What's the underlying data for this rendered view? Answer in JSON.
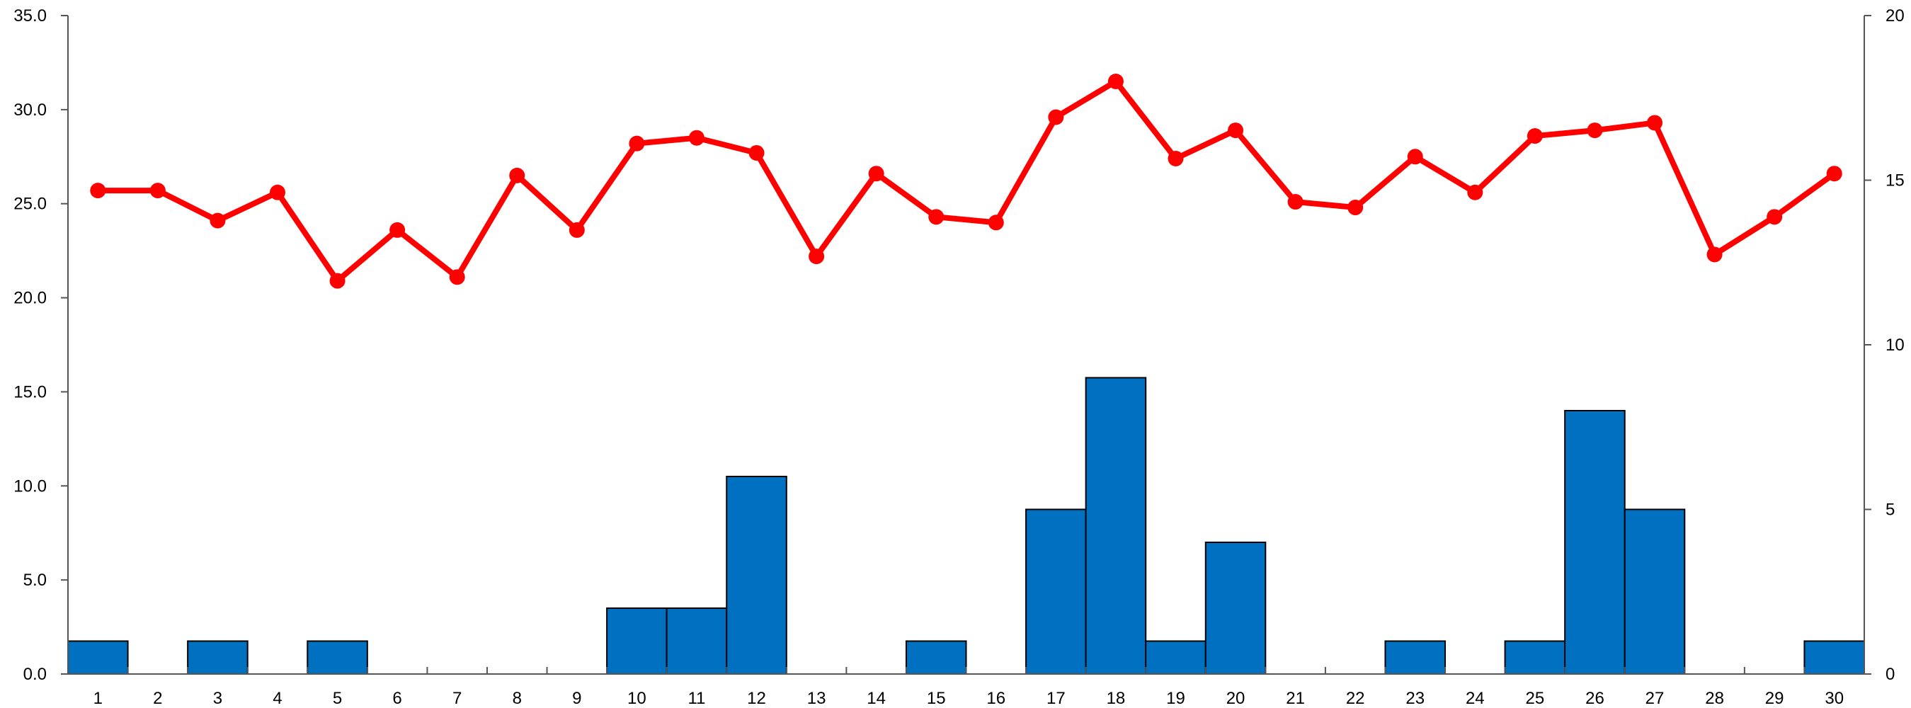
{
  "chart_data": {
    "type": "bar+line",
    "categories": [
      "1",
      "2",
      "3",
      "4",
      "5",
      "6",
      "7",
      "8",
      "9",
      "10",
      "11",
      "12",
      "13",
      "14",
      "15",
      "16",
      "17",
      "18",
      "19",
      "20",
      "21",
      "22",
      "23",
      "24",
      "25",
      "26",
      "27",
      "28",
      "29",
      "30"
    ],
    "series": [
      {
        "type": "bar",
        "axis": "right",
        "color": "#0070C0",
        "values": [
          1,
          0,
          1,
          0,
          1,
          0,
          0,
          0,
          0,
          2,
          2,
          6,
          0,
          0,
          1,
          0,
          5,
          9,
          1,
          4,
          0,
          0,
          1,
          0,
          1,
          8,
          5,
          0,
          0,
          1
        ]
      },
      {
        "type": "line",
        "axis": "left",
        "color": "#FF0000",
        "values": [
          25.7,
          25.7,
          24.1,
          25.6,
          20.9,
          23.6,
          21.1,
          26.5,
          23.6,
          28.2,
          28.5,
          27.7,
          22.2,
          26.6,
          24.3,
          24.0,
          29.6,
          31.5,
          27.4,
          28.9,
          25.1,
          24.8,
          27.5,
          25.6,
          28.6,
          28.9,
          29.3,
          22.3,
          24.3,
          26.6
        ]
      }
    ],
    "left_axis": {
      "ylim": [
        0,
        35
      ],
      "ticks": [
        "0.0",
        "5.0",
        "10.0",
        "15.0",
        "20.0",
        "25.0",
        "30.0",
        "35.0"
      ]
    },
    "right_axis": {
      "ylim": [
        0,
        20
      ],
      "ticks": [
        "0",
        "5",
        "10",
        "15",
        "20"
      ]
    },
    "title": "",
    "xlabel": "",
    "ylabel": "",
    "grid": false,
    "legend": "none"
  }
}
